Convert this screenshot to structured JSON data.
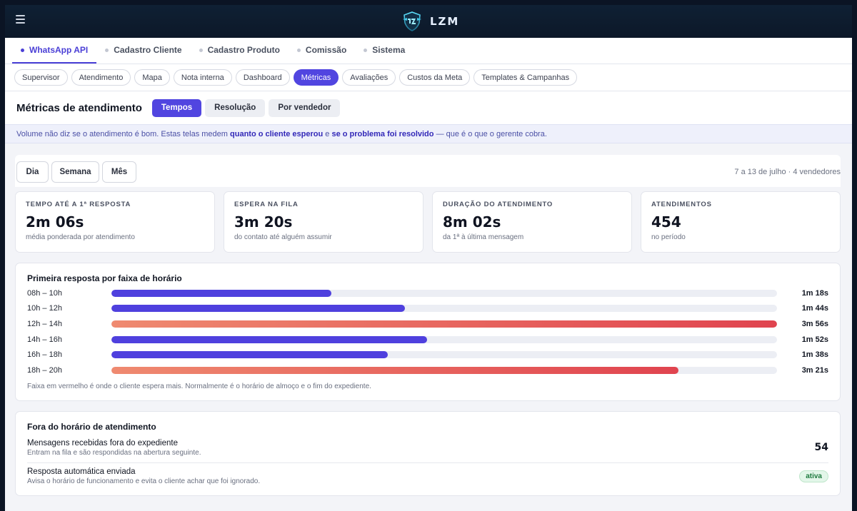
{
  "brand": {
    "name": "LZM"
  },
  "module_tabs": [
    {
      "label": "WhatsApp API",
      "active": true
    },
    {
      "label": "Cadastro Cliente",
      "active": false
    },
    {
      "label": "Cadastro Produto",
      "active": false
    },
    {
      "label": "Comissão",
      "active": false
    },
    {
      "label": "Sistema",
      "active": false
    }
  ],
  "sub_tabs": [
    {
      "label": "Supervisor",
      "active": false
    },
    {
      "label": "Atendimento",
      "active": false
    },
    {
      "label": "Mapa",
      "active": false
    },
    {
      "label": "Nota interna",
      "active": false
    },
    {
      "label": "Dashboard",
      "active": false
    },
    {
      "label": "Métricas",
      "active": true
    },
    {
      "label": "Avaliações",
      "active": false
    },
    {
      "label": "Custos da Meta",
      "active": false
    },
    {
      "label": "Templates & Campanhas",
      "active": false
    }
  ],
  "page": {
    "title": "Métricas de atendimento",
    "views": [
      {
        "label": "Tempos",
        "active": true
      },
      {
        "label": "Resolução",
        "active": false
      },
      {
        "label": "Por vendedor",
        "active": false
      }
    ]
  },
  "info": {
    "part1": "Volume não diz se o atendimento é bom. Estas telas medem ",
    "bold1": "quanto o cliente esperou",
    "part2": " e ",
    "bold2": "se o problema foi resolvido",
    "part3": " — que é o que o gerente cobra."
  },
  "period": {
    "buttons": [
      "Dia",
      "Semana",
      "Mês"
    ],
    "note": "7 a 13 de julho · 4 vendedores"
  },
  "kpis": [
    {
      "label": "TEMPO ATÉ A 1ª RESPOSTA",
      "value": "2m 06s",
      "sub": "média ponderada por atendimento"
    },
    {
      "label": "ESPERA NA FILA",
      "value": "3m 20s",
      "sub": "do contato até alguém assumir"
    },
    {
      "label": "DURAÇÃO DO ATENDIMENTO",
      "value": "8m 02s",
      "sub": "da 1ª à última mensagem"
    },
    {
      "label": "ATENDIMENTOS",
      "value": "454",
      "sub": "no período"
    }
  ],
  "chart_data": {
    "type": "bar",
    "title": "Primeira resposta por faixa de horário",
    "categories": [
      "08h – 10h",
      "10h – 12h",
      "12h – 14h",
      "14h – 16h",
      "16h – 18h",
      "18h – 20h"
    ],
    "values_seconds": [
      78,
      104,
      236,
      112,
      98,
      201
    ],
    "value_labels": [
      "1m 18s",
      "1m 44s",
      "3m 56s",
      "1m 52s",
      "1m 38s",
      "3m 21s"
    ],
    "highlight": [
      false,
      false,
      true,
      false,
      false,
      true
    ],
    "max_seconds": 236,
    "note": "Faixa em vermelho é onde o cliente espera mais. Normalmente é o horário de almoço e o fim do expediente.",
    "colors": {
      "normal": "#4f40de",
      "hot_start": "#ef8a70",
      "hot_end": "#e0444f"
    }
  },
  "off_hours": {
    "title": "Fora do horário de atendimento",
    "items": [
      {
        "title": "Mensagens recebidas fora do expediente",
        "sub": "Entram na fila e são respondidas na abertura seguinte.",
        "value": "54"
      },
      {
        "title": "Resposta automática enviada",
        "sub": "Avisa o horário de funcionamento e evita o cliente achar que foi ignorado.",
        "badge": "ativa"
      }
    ]
  }
}
